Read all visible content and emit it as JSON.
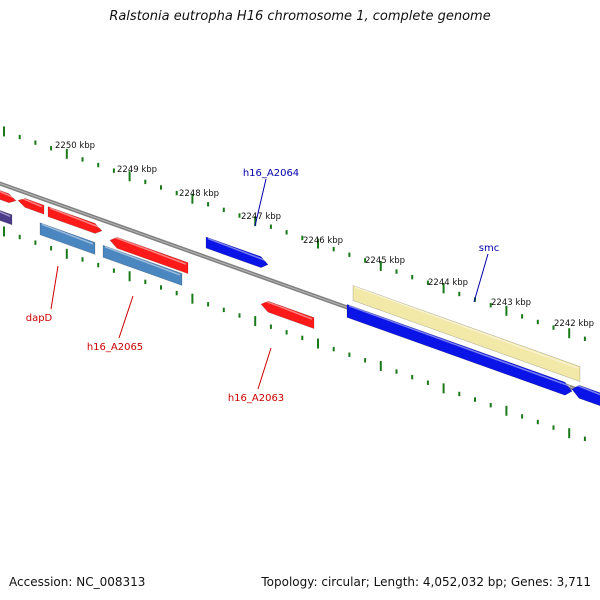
{
  "title": "Ralstonia eutropha H16 chromosome 1, complete genome",
  "footer": {
    "accession": "Accession: NC_008313",
    "summary": "Topology: circular; Length: 4,052,032 bp; Genes: 3,711"
  },
  "colors": {
    "backbone": "#808080",
    "ticks": "#1a7a1a",
    "red_gene": "#ff1a1a",
    "blue_gene": "#0a14e6",
    "steel_gene": "#4a86c0",
    "cream_gene": "#f2e8a8",
    "red_label": "#cc0000",
    "blue_label": "#0000aa"
  },
  "scale_labels": [
    "2250 kbp",
    "2249 kbp",
    "2248 kbp",
    "2247 kbp",
    "2246 kbp",
    "2245 kbp",
    "2244 kbp",
    "2243 kbp",
    "2242 kbp"
  ],
  "gene_labels": [
    "h16_A2064",
    "smc",
    "dapD",
    "h16_A2065",
    "h16_A2063"
  ]
}
